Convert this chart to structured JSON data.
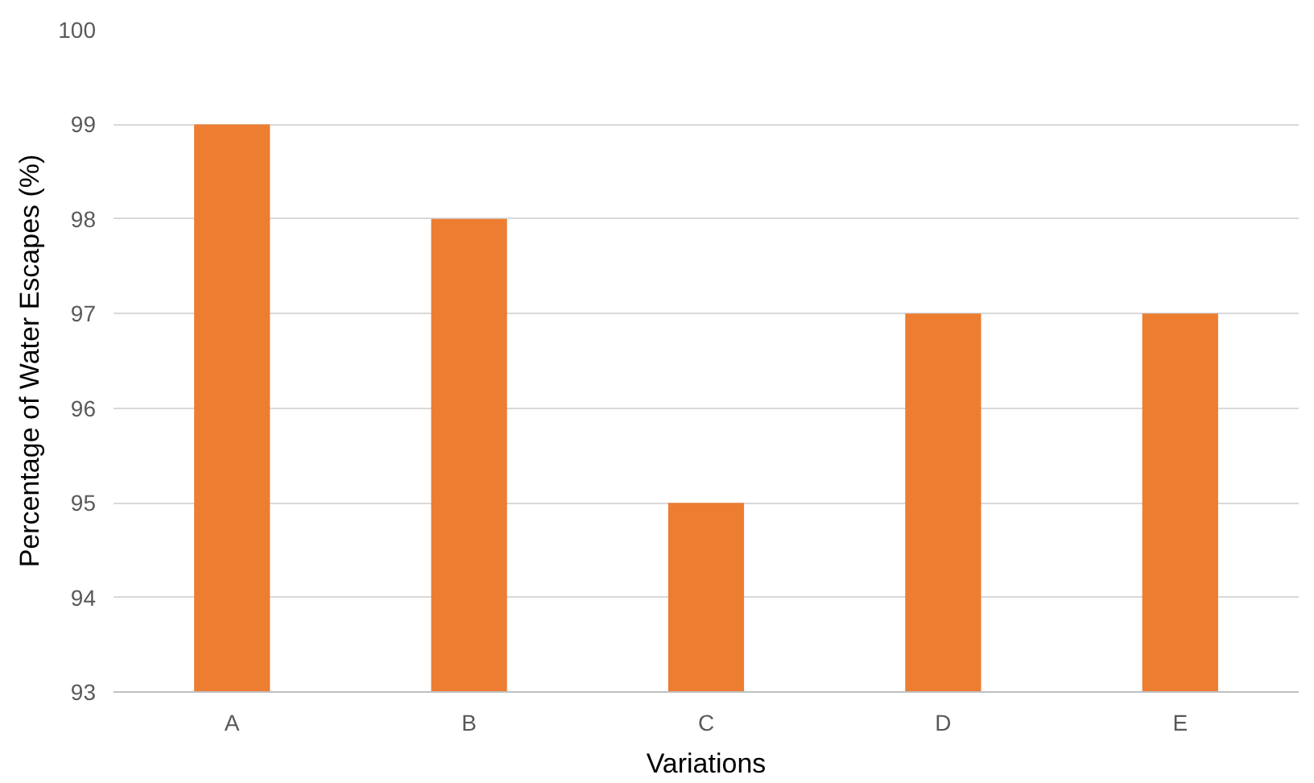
{
  "chart_data": {
    "type": "bar",
    "xlabel": "Variations",
    "ylabel": "Percentage of Water Escapes (%)",
    "categories": [
      "A",
      "B",
      "C",
      "D",
      "E"
    ],
    "values": [
      99,
      98,
      95,
      97,
      97
    ],
    "color": "#ed7d31",
    "ylim": [
      93,
      100
    ],
    "yticks": [
      93,
      94,
      95,
      96,
      97,
      98,
      99,
      100
    ],
    "grid": "y"
  }
}
